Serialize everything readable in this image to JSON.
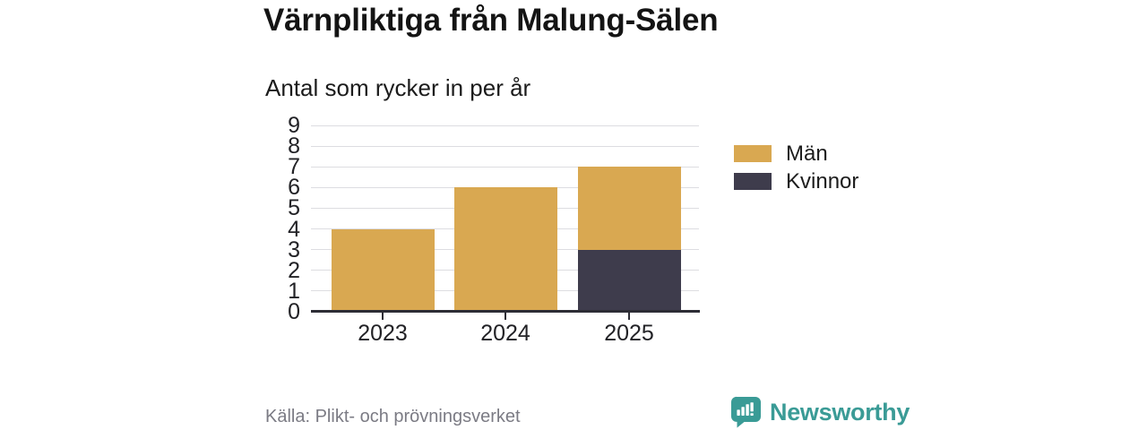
{
  "title": "Värnpliktiga från Malung-Sälen",
  "subtitle": "Antal som rycker in per år",
  "source": "Källa: Plikt- och prövningsverket",
  "brand": {
    "name": "Newsworthy",
    "color": "#3a9b96"
  },
  "colors": {
    "men": "#d9a851",
    "women": "#3e3c4c",
    "grid": "#dddde1",
    "axis": "#2d2d35",
    "text": "#1c1c1c",
    "muted_text": "#7b7b84",
    "brand_teal": "#3a9b96"
  },
  "chart_data": {
    "type": "bar",
    "stacked": true,
    "title": "Värnpliktiga från Malung-Sälen",
    "subtitle": "Antal som rycker in per år",
    "xlabel": "",
    "ylabel": "",
    "categories": [
      "2023",
      "2024",
      "2025"
    ],
    "series": [
      {
        "name": "Kvinnor",
        "color": "#3e3c4c",
        "values": [
          0,
          0,
          3
        ]
      },
      {
        "name": "Män",
        "color": "#d9a851",
        "values": [
          4,
          6,
          4
        ]
      }
    ],
    "totals": [
      4,
      6,
      7
    ],
    "ylim": [
      0,
      9
    ],
    "ytick_step": 1,
    "grid": true,
    "legend": [
      {
        "label": "Män",
        "color": "#d9a851"
      },
      {
        "label": "Kvinnor",
        "color": "#3e3c4c"
      }
    ],
    "legend_position": "right"
  }
}
